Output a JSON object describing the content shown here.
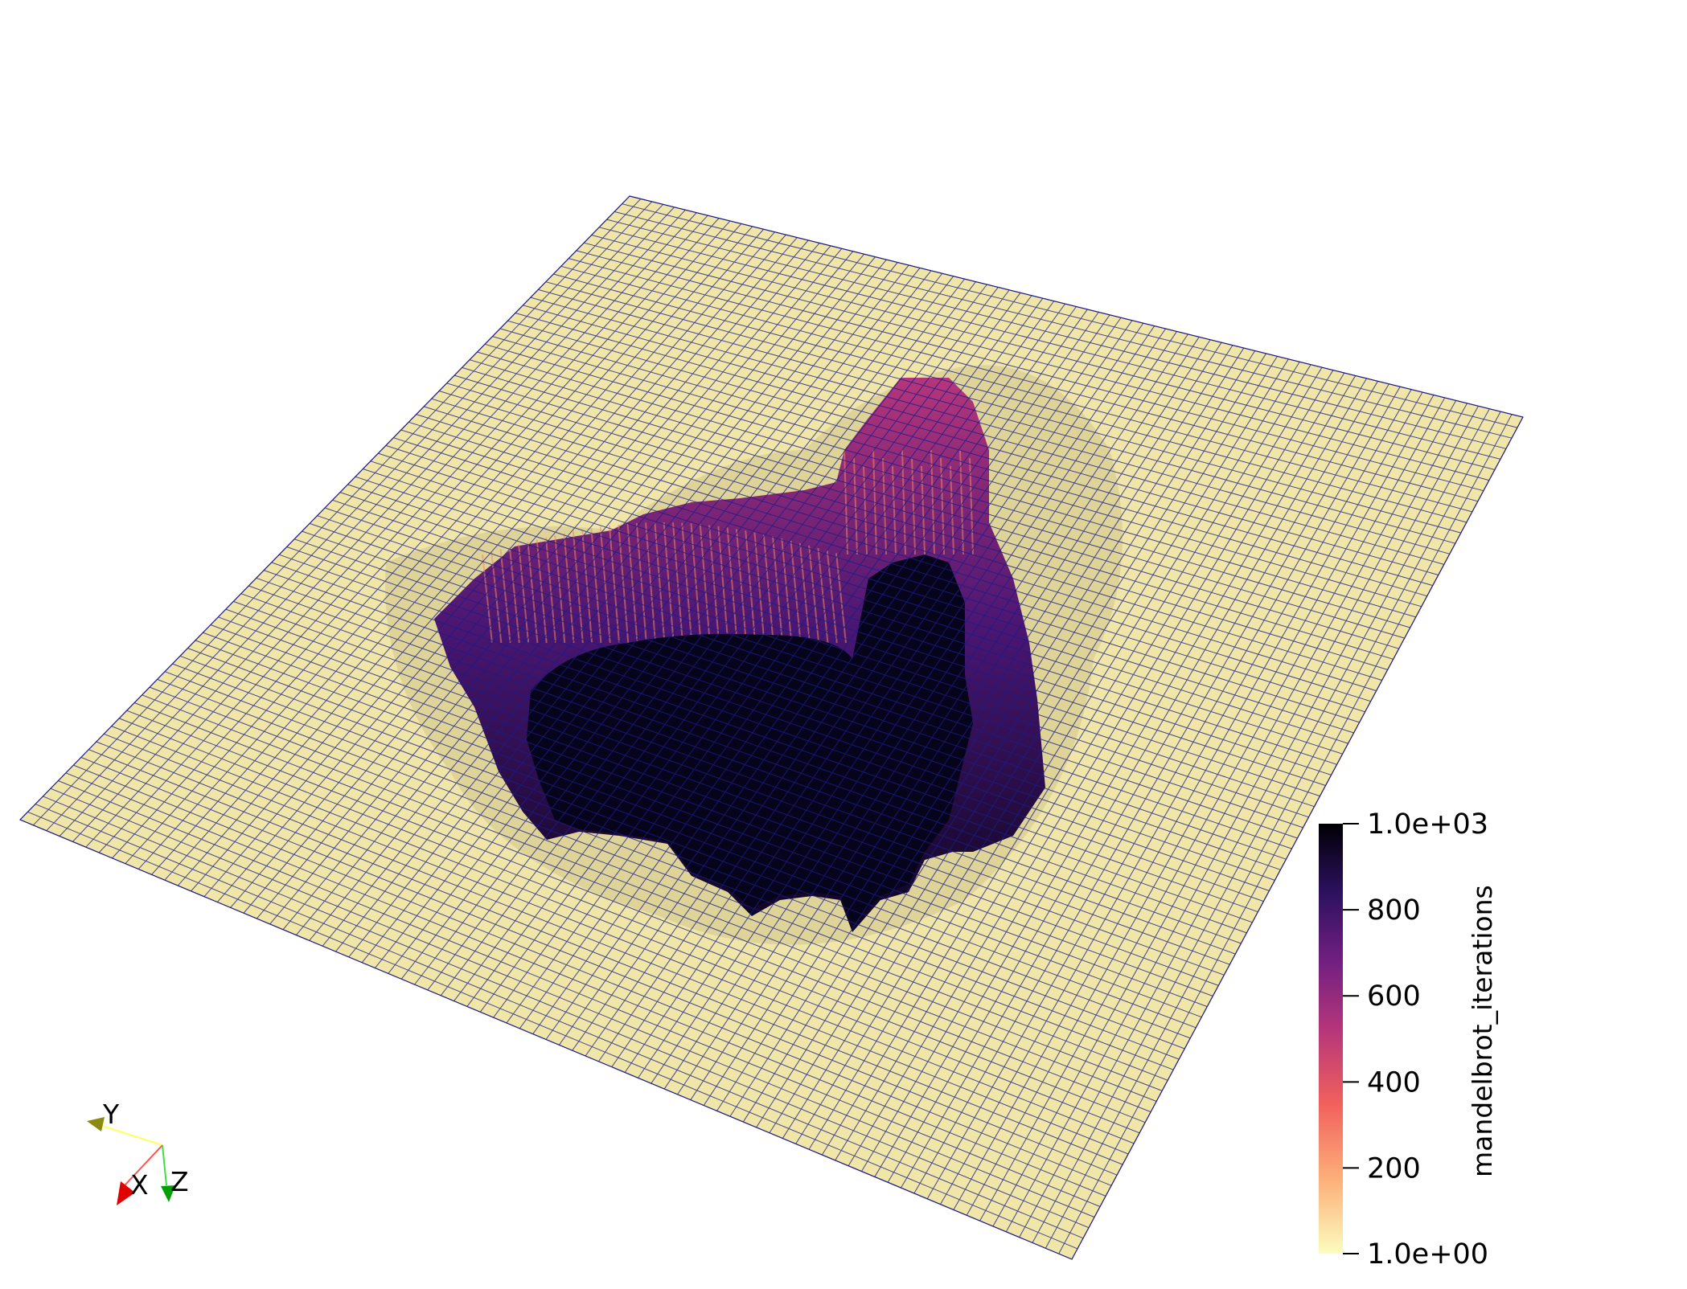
{
  "render_view": {
    "surface": {
      "scalar_name": "mandelbrot_iterations",
      "surface_color": "#f0e6a8",
      "grid_line_color": "#1c1c8a"
    },
    "colorbar": {
      "title": "mandelbrot_iterations",
      "range": [
        1,
        1000
      ],
      "labels": [
        "1.0e+03",
        "800",
        "600",
        "400",
        "200",
        "1.0e+00"
      ],
      "colormap": [
        "#fcfdbf",
        "#fdb07a",
        "#f1605d",
        "#b5367a",
        "#721f81",
        "#2c115f",
        "#000004"
      ]
    },
    "orientation_axes": {
      "x_label": "X",
      "y_label": "Y",
      "z_label": "Z",
      "x_color": "#ff0000",
      "y_color": "#d8d800",
      "z_color": "#00c000"
    }
  }
}
